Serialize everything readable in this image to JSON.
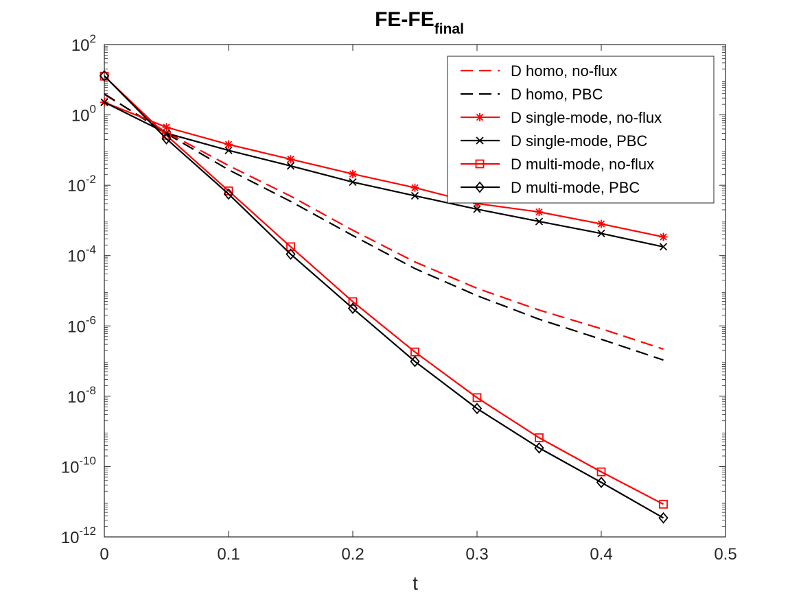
{
  "chart_data": {
    "type": "line",
    "title": "FE-FE",
    "title_subscript": "final",
    "xlabel": "t",
    "ylabel": "",
    "xlim": [
      0,
      0.5
    ],
    "ylim_log10": [
      -12,
      2
    ],
    "yscale": "log",
    "grid": false,
    "legend_position": "top-right",
    "x_ticks": [
      {
        "value": 0,
        "label": "0"
      },
      {
        "value": 0.1,
        "label": "0.1"
      },
      {
        "value": 0.2,
        "label": "0.2"
      },
      {
        "value": 0.3,
        "label": "0.3"
      },
      {
        "value": 0.4,
        "label": "0.4"
      },
      {
        "value": 0.5,
        "label": "0.5"
      }
    ],
    "y_ticks": [
      {
        "exponent": 2,
        "base": "10",
        "exp": "2"
      },
      {
        "exponent": 0,
        "base": "10",
        "exp": "0"
      },
      {
        "exponent": -2,
        "base": "10",
        "exp": "-2"
      },
      {
        "exponent": -4,
        "base": "10",
        "exp": "-4"
      },
      {
        "exponent": -6,
        "base": "10",
        "exp": "-6"
      },
      {
        "exponent": -8,
        "base": "10",
        "exp": "-8"
      },
      {
        "exponent": -10,
        "base": "10",
        "exp": "-10"
      },
      {
        "exponent": -12,
        "base": "10",
        "exp": "-12"
      }
    ],
    "x": [
      0,
      0.05,
      0.1,
      0.15,
      0.2,
      0.25,
      0.3,
      0.35,
      0.4,
      0.45
    ],
    "series": [
      {
        "name": "D homo, no-flux",
        "color": "#ff0000",
        "line": "dashed",
        "marker": "none",
        "y_log10": [
          0.58,
          -0.49,
          -1.44,
          -2.31,
          -3.28,
          -4.18,
          -4.93,
          -5.55,
          -6.08,
          -6.66
        ]
      },
      {
        "name": "D homo, PBC",
        "color": "#000000",
        "line": "dashed",
        "marker": "none",
        "y_log10": [
          0.6,
          -0.53,
          -1.56,
          -2.46,
          -3.43,
          -4.37,
          -5.14,
          -5.81,
          -6.38,
          -6.97
        ]
      },
      {
        "name": "D single-mode, no-flux",
        "color": "#ff0000",
        "line": "solid",
        "marker": "asterisk",
        "y_log10": [
          0.36,
          -0.35,
          -0.84,
          -1.26,
          -1.68,
          -2.07,
          -2.52,
          -2.76,
          -3.1,
          -3.47
        ]
      },
      {
        "name": "D single-mode, PBC",
        "color": "#000000",
        "line": "solid",
        "marker": "x",
        "y_log10": [
          0.36,
          -0.52,
          -1.01,
          -1.45,
          -1.91,
          -2.3,
          -2.68,
          -3.03,
          -3.37,
          -3.75
        ]
      },
      {
        "name": "D multi-mode, no-flux",
        "color": "#ff0000",
        "line": "solid",
        "marker": "square",
        "y_log10": [
          1.1,
          -0.58,
          -2.16,
          -3.75,
          -5.31,
          -6.74,
          -8.04,
          -9.18,
          -10.15,
          -11.07
        ]
      },
      {
        "name": "D multi-mode, PBC",
        "color": "#000000",
        "line": "solid",
        "marker": "diamond",
        "y_log10": [
          1.11,
          -0.68,
          -2.25,
          -3.96,
          -5.5,
          -7.01,
          -8.35,
          -9.47,
          -10.45,
          -11.46
        ]
      }
    ]
  }
}
